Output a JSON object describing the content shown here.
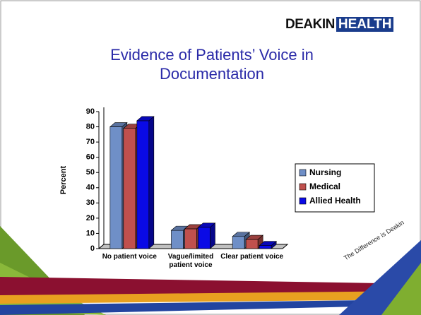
{
  "logo": {
    "name": "DEAKIN",
    "unit": "HEALTH"
  },
  "tagline": "The Difference is Deakin",
  "chart_data": {
    "type": "bar3d",
    "title": "Evidence of Patients’ Voice in Documentation",
    "y_label": "Percent",
    "categories": [
      "No patient voice",
      "Vague/limited patient voice",
      "Clear patient voice"
    ],
    "series": [
      {
        "name": "Nursing",
        "color": "#6f8fc7",
        "values": [
          80,
          12,
          8
        ]
      },
      {
        "name": "Medical",
        "color": "#c0504d",
        "values": [
          79,
          13,
          6
        ]
      },
      {
        "name": "Allied Health",
        "color": "#0a0ae6",
        "values": [
          84,
          14,
          2
        ]
      }
    ],
    "ylim": [
      0,
      90
    ],
    "yticks": [
      0,
      10,
      20,
      30,
      40,
      50,
      60,
      70,
      80,
      90
    ],
    "legend": "right"
  }
}
